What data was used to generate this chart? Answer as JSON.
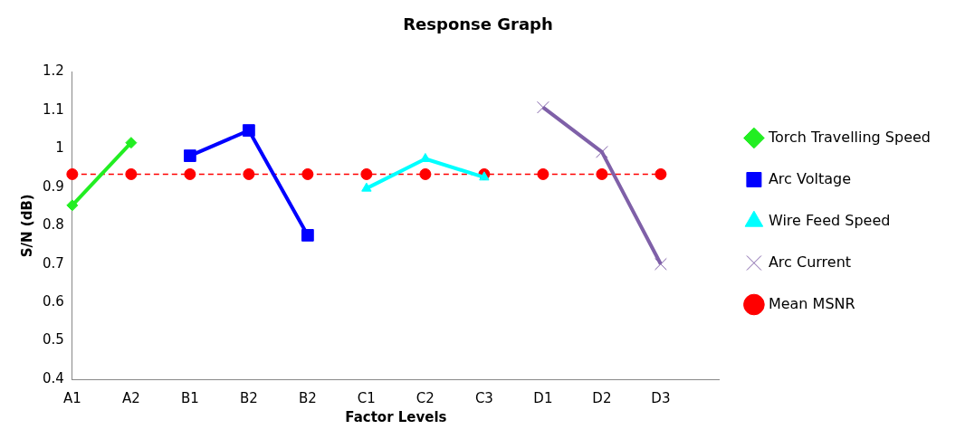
{
  "chart_data": {
    "type": "line",
    "title": "Response Graph",
    "xlabel": "Factor Levels",
    "ylabel": "S/N (dB)",
    "categories": [
      "A1",
      "A2",
      "B1",
      "B2",
      "B2",
      "C1",
      "C2",
      "C3",
      "D1",
      "D2",
      "D3",
      null
    ],
    "ylim": [
      0.4,
      1.2
    ],
    "yticks": [
      0.4,
      0.5,
      0.6,
      0.7,
      0.8,
      0.9,
      1,
      1.1,
      1.2
    ],
    "grid": false,
    "legend": "right",
    "series": [
      {
        "name": "Torch Travelling Speed",
        "color": "#22ee22",
        "marker": "diamond",
        "values": [
          0.853,
          1.016,
          null,
          null,
          null,
          null,
          null,
          null,
          null,
          null,
          null,
          null
        ]
      },
      {
        "name": "Arc Voltage",
        "color": "#0000ff",
        "marker": "square",
        "values": [
          null,
          null,
          0.982,
          1.048,
          0.775,
          null,
          null,
          null,
          null,
          null,
          null,
          null
        ]
      },
      {
        "name": "Wire Feed Speed",
        "color": "#00ffff",
        "marker": "triangle",
        "values": [
          null,
          null,
          null,
          null,
          null,
          0.897,
          0.974,
          0.926,
          null,
          null,
          null,
          null
        ]
      },
      {
        "name": "Arc Current",
        "color": "#7f60a8",
        "marker": "cross",
        "values": [
          null,
          null,
          null,
          null,
          null,
          null,
          null,
          null,
          1.108,
          0.992,
          0.7,
          null
        ]
      },
      {
        "name": "Mean MSNR",
        "color": "#ff0000",
        "marker": "circle",
        "line_style": "dashed",
        "values": [
          0.934,
          0.934,
          0.934,
          0.934,
          0.934,
          0.934,
          0.934,
          0.934,
          0.934,
          0.934,
          0.934,
          null
        ]
      }
    ]
  }
}
